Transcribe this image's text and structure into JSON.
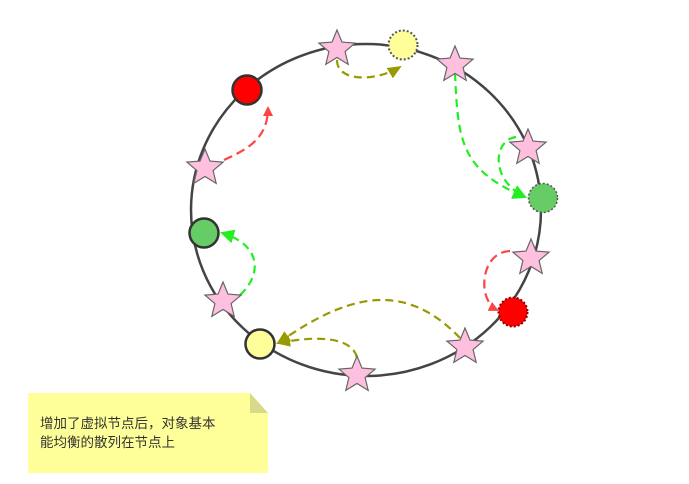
{
  "note": {
    "text": "增加了虚拟节点后，对象基本\n 能均衡的散列在节点上"
  },
  "legend_colors": {
    "red_node": "#ff0000",
    "green_node": "#66cc66",
    "yellow_node": "#ffff99",
    "virtual_star": "#ffc0e0",
    "ring": "#444444",
    "arrow_red": "#ff4444",
    "arrow_green": "#22ee22",
    "arrow_olive": "#999900"
  },
  "nodes": [
    {
      "name": "physical-node-red",
      "color": "red",
      "style": "solid"
    },
    {
      "name": "physical-node-green",
      "color": "green",
      "style": "solid"
    },
    {
      "name": "physical-node-yellow",
      "color": "yellow",
      "style": "solid"
    },
    {
      "name": "virtual-node-yellow",
      "color": "yellow",
      "style": "dotted"
    },
    {
      "name": "virtual-node-green",
      "color": "green",
      "style": "dotted"
    },
    {
      "name": "virtual-node-red",
      "color": "red",
      "style": "dotted"
    }
  ]
}
